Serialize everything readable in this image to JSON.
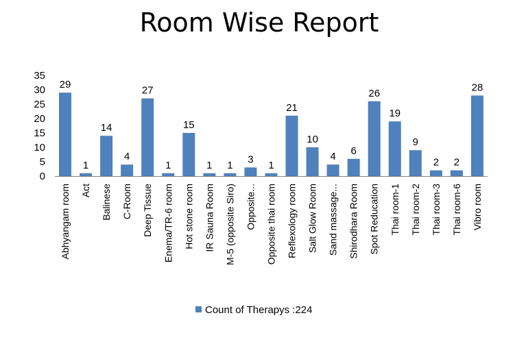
{
  "chart_data": {
    "type": "bar",
    "title": "Room Wise Report",
    "xlabel": "",
    "ylabel": "",
    "ylim": [
      0,
      35
    ],
    "yticks": [
      0,
      5,
      10,
      15,
      20,
      25,
      30,
      35
    ],
    "grid": false,
    "legend": "bottom",
    "bar_color": "#4F81BD",
    "categories": [
      "Abhyangam room",
      "Act",
      "Balinese",
      "C-Room",
      "Deep Tissue",
      "Enema/TR-6 room",
      "Hot stone  room",
      "IR Sauna Room",
      "M-5 (opposite Siro)",
      "Opposite...",
      "Opposite thai room",
      "Reflexology room",
      "Salt Glow Room",
      "Sand massage...",
      "Shirodhara Room",
      "Spot Reducation",
      "Thai room-1",
      "Thai room-2",
      "Thai room-3",
      "Thai room-6",
      "Vibro room"
    ],
    "series": [
      {
        "name": "Count of Therapys :224",
        "values": [
          29,
          1,
          14,
          4,
          27,
          1,
          15,
          1,
          1,
          3,
          1,
          21,
          10,
          4,
          6,
          26,
          19,
          9,
          2,
          2,
          28
        ]
      }
    ]
  }
}
